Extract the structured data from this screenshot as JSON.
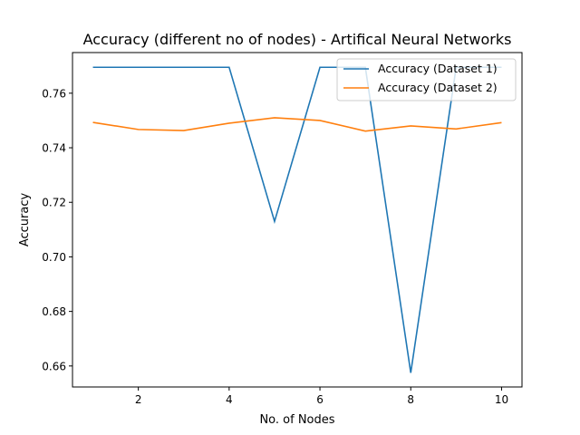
{
  "chart_data": {
    "type": "line",
    "title": "Accuracy (different no of nodes) - Artifical Neural Networks",
    "xlabel": "No. of Nodes",
    "ylabel": "Accuracy",
    "x": [
      1,
      2,
      3,
      4,
      5,
      6,
      7,
      8,
      9,
      10
    ],
    "xlim": [
      0.55,
      10.45
    ],
    "ylim": [
      0.6523,
      0.7749
    ],
    "xticks": [
      2,
      4,
      6,
      8,
      10
    ],
    "xtick_labels": [
      "2",
      "4",
      "6",
      "8",
      "10"
    ],
    "yticks": [
      0.66,
      0.68,
      0.7,
      0.72,
      0.74,
      0.76
    ],
    "ytick_labels": [
      "0.66",
      "0.68",
      "0.70",
      "0.72",
      "0.74",
      "0.76"
    ],
    "grid": false,
    "legend_position": "top-right",
    "series": [
      {
        "name": "Accuracy (Dataset 1)",
        "color": "#1f77b4",
        "values": [
          0.7695,
          0.7695,
          0.7695,
          0.7695,
          0.713,
          0.7695,
          0.7695,
          0.6575,
          0.7695,
          0.7695
        ]
      },
      {
        "name": "Accuracy (Dataset 2)",
        "color": "#ff7f0e",
        "values": [
          0.7493,
          0.7467,
          0.7463,
          0.749,
          0.751,
          0.75,
          0.7461,
          0.748,
          0.7469,
          0.7492
        ]
      }
    ]
  }
}
